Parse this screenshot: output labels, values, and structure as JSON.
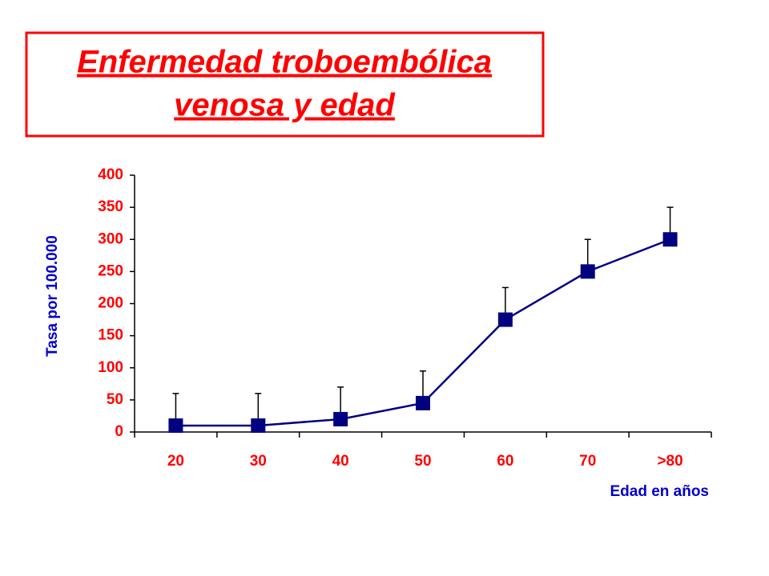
{
  "chart_data": {
    "type": "line",
    "title": [
      "Enfermedad troboembólica",
      "venosa y edad"
    ],
    "y_label": "Tasa por 100.000",
    "x_label": "Edad en años",
    "categories": [
      "20",
      "30",
      "40",
      "50",
      "60",
      "70",
      ">80"
    ],
    "series": [
      {
        "color": "#000080",
        "values": [
          10,
          10,
          20,
          45,
          175,
          250,
          300
        ],
        "errors": [
          50,
          50,
          50,
          50,
          50,
          50,
          50
        ]
      }
    ],
    "ylim": [
      0,
      400
    ],
    "yticks": [
      0,
      50,
      100,
      150,
      200,
      250,
      300,
      350,
      400
    ],
    "title_color": "#ff0000",
    "tick_color": "#ff0000",
    "label_color": "#0000cc",
    "grid": false
  }
}
